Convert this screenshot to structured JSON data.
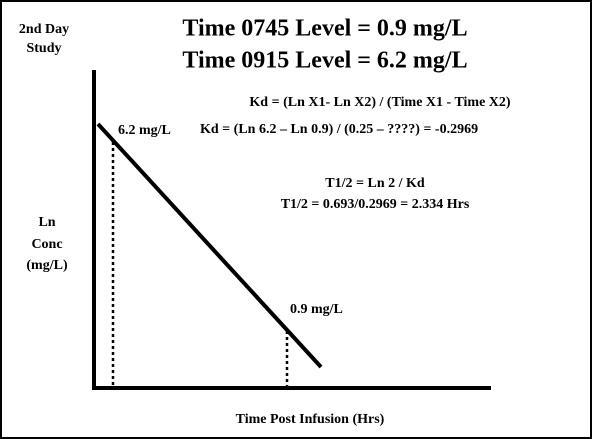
{
  "header": {
    "study": [
      "2nd Day",
      "Study"
    ],
    "title_lines": [
      "Time 0745 Level = 0.9 mg/L",
      "Time 0915 Level = 6.2 mg/L"
    ]
  },
  "formulas": {
    "kd_general": "Kd = (Ln X1- Ln X2) / (Time X1 - Time X2)",
    "kd_specific": "Kd = (Ln 6.2 – Ln 0.9) / (0.25 – ????) = -0.2969",
    "half_life_general": "T1/2 = Ln 2 / Kd",
    "half_life_specific": "T1/2 = 0.693/0.2969 = 2.334 Hrs"
  },
  "graph": {
    "y_axis_label": [
      "Ln",
      "Conc",
      "(mg/L)"
    ],
    "x_axis_label": "Time Post Infusion (Hrs)",
    "point_labels": [
      "6.2 mg/L",
      "0.9 mg/L"
    ]
  }
}
